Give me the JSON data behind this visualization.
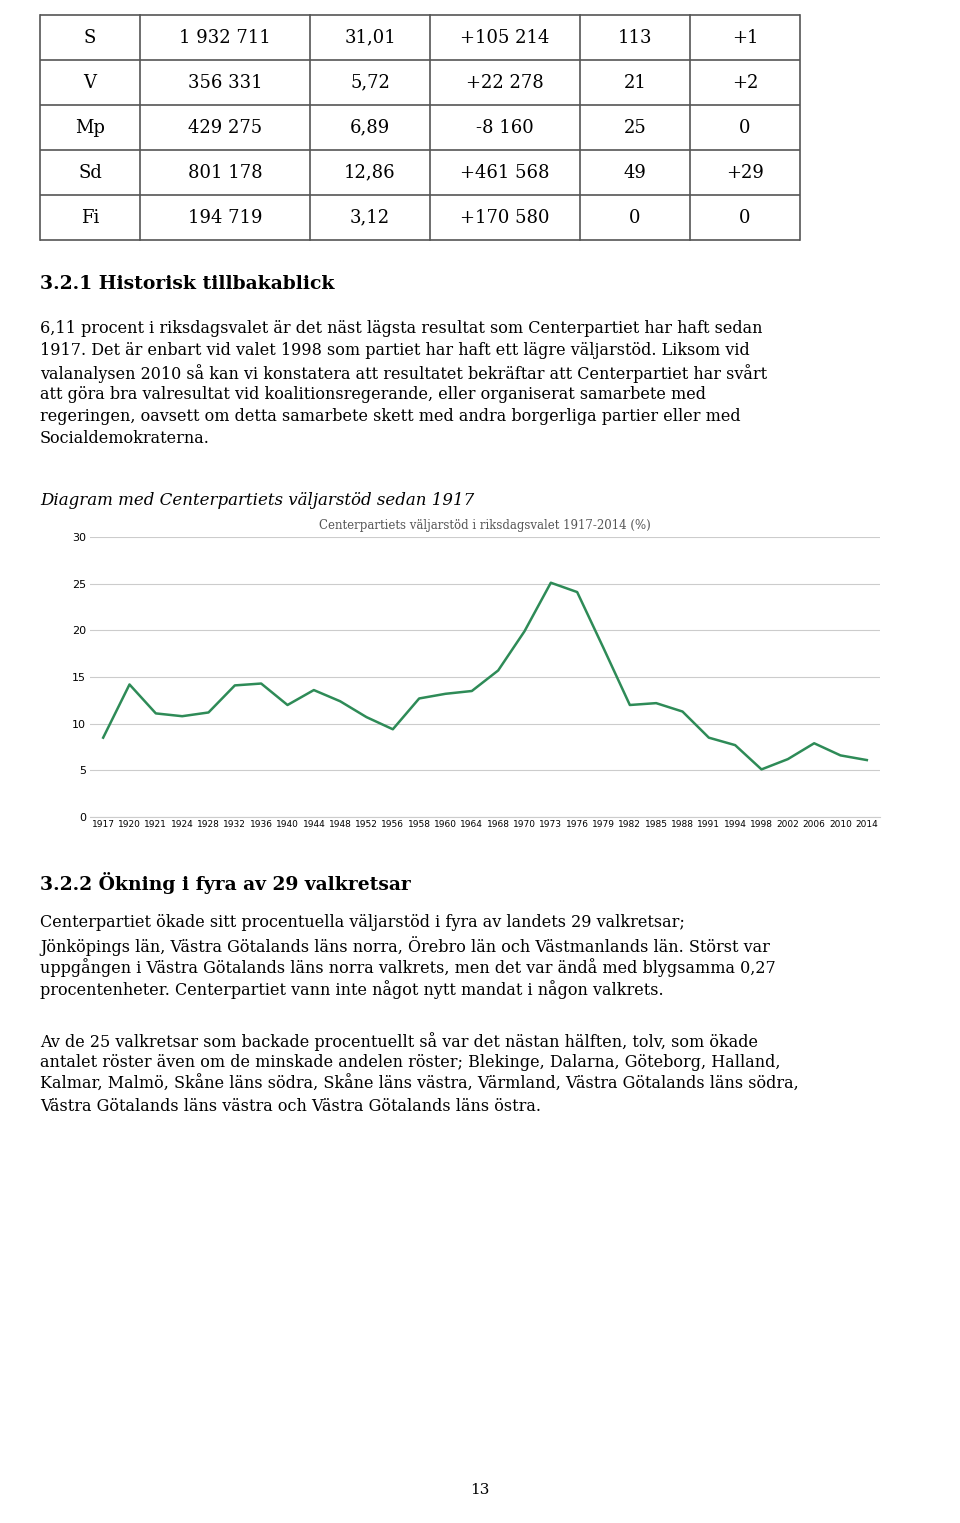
{
  "table_rows": [
    [
      "S",
      "1 932 711",
      "31,01",
      "+105 214",
      "113",
      "+1"
    ],
    [
      "V",
      "356 331",
      "5,72",
      "+22 278",
      "21",
      "+2"
    ],
    [
      "Mp",
      "429 275",
      "6,89",
      "-8 160",
      "25",
      "0"
    ],
    [
      "Sd",
      "801 178",
      "12,86",
      "+461 568",
      "49",
      "+29"
    ],
    [
      "Fi",
      "194 719",
      "3,12",
      "+170 580",
      "0",
      "0"
    ]
  ],
  "section_title1": "3.2.1 Historisk tillbakablick",
  "paragraph1": "6,11 procent i riksdagsvalet är det näst lägsta resultat som Centerpartiet har haft sedan 1917. Det är enbart vid valet 1998 som partiet har haft ett lägre väljarstöd. Liksom vid valanalysen 2010 så kan vi konstatera att resultatet bekräftar att Centerpartiet har svårt att göra bra valresultat vid koalitionsregerande, eller organiserat samarbete med regeringen, oavsett om detta samarbete skett med andra borgerliga partier eller med Socialdemokraterna.",
  "diagram_label": "Diagram med Centerpartiets väljarstöd sedan 1917",
  "chart_title": "Centerpartiets väljarstöd i riksdagsvalet 1917-2014 (%)",
  "years": [
    1917,
    1920,
    1921,
    1924,
    1928,
    1932,
    1936,
    1940,
    1944,
    1948,
    1952,
    1956,
    1958,
    1960,
    1964,
    1968,
    1970,
    1973,
    1976,
    1979,
    1982,
    1985,
    1988,
    1991,
    1994,
    1998,
    2002,
    2006,
    2010,
    2014
  ],
  "values": [
    8.5,
    14.2,
    11.1,
    10.8,
    11.2,
    14.1,
    14.3,
    12.0,
    13.6,
    12.4,
    10.7,
    9.4,
    12.7,
    13.2,
    13.5,
    15.7,
    19.9,
    25.1,
    24.1,
    18.1,
    12.0,
    12.2,
    11.3,
    8.5,
    7.7,
    5.1,
    6.2,
    7.9,
    6.6,
    6.1
  ],
  "line_color": "#2e8b57",
  "ylim_min": 0,
  "ylim_max": 30,
  "yticks": [
    0,
    5,
    10,
    15,
    20,
    25,
    30
  ],
  "section_title2": "3.2.2 Ökning i fyra av 29 valkretsar",
  "paragraph2": "Centerpartiet ökade sitt procentuella väljarstöd i fyra av landets 29 valkretsar; Jönköpings län, Västra Götalands läns norra, Örebro län och Västmanlands län. Störst var uppgången i Västra Götalands läns norra valkrets, men det var ändå med blygsamma 0,27 procentenheter. Centerpartiet vann inte något nytt mandat i någon valkrets.",
  "paragraph3": "Av de 25 valkretsar som backade procentuellt så var det nästan hälften, tolv, som ökade antalet röster även om de minskade andelen röster; Blekinge, Dalarna, Göteborg, Halland, Kalmar, Malmö, Skåne läns södra, Skåne läns västra, Värmland, Västra Götalands läns södra, Västra Götalands läns västra och Västra Götalands läns östra.",
  "page_number": "13",
  "background_color": "#ffffff",
  "text_color": "#000000",
  "grid_color": "#cccccc",
  "table_border_color": "#555555"
}
